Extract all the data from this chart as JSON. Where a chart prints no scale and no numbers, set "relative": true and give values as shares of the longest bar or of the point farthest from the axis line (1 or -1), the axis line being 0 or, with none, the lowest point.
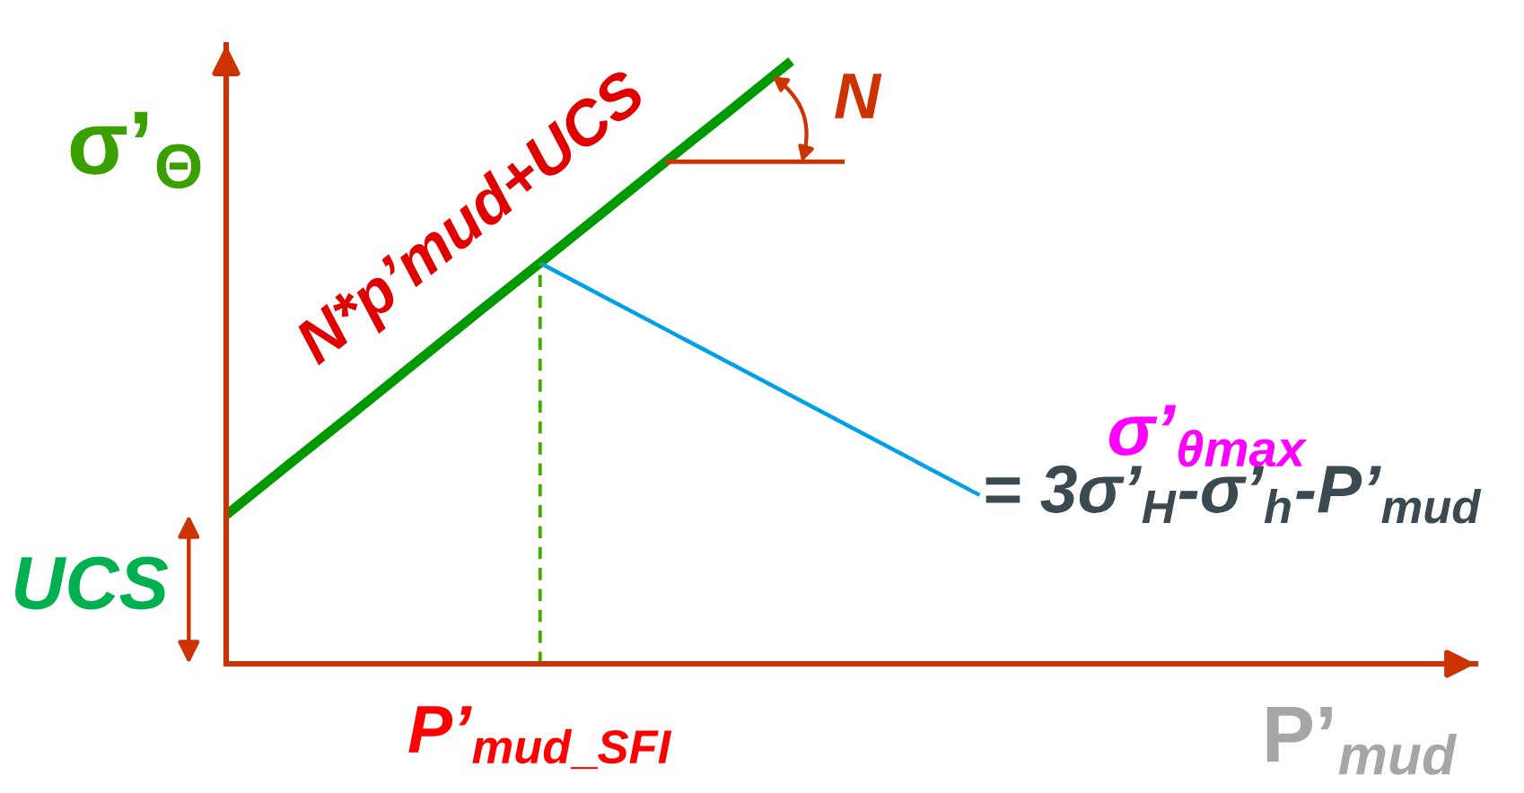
{
  "chart_data": {
    "type": "line",
    "relative": true,
    "ylabel": "σ’$_{Θ}$",
    "xlabel": "P’$_{mud}$",
    "categories": [
      null,
      null,
      null,
      null,
      null,
      null,
      null,
      null,
      null,
      null,
      null,
      null,
      null,
      null,
      null,
      null,
      null,
      null,
      null,
      null
    ],
    "series": [
      {
        "name": "N*p’mud+UCS",
        "color": "#009900",
        "values": [
          0.247,
          0.331,
          0.414,
          0.498,
          0.582,
          0.665,
          0.749,
          0.833,
          0.916,
          1.0,
          null,
          null,
          null,
          null,
          null,
          null,
          null,
          null,
          null,
          null
        ]
      },
      {
        "name": "σ’$_{θmax}$",
        "color": "#00a0e8",
        "values": [
          null,
          null,
          null,
          null,
          null,
          0.665,
          0.61,
          0.555,
          0.5,
          0.445,
          0.39,
          0.335,
          0.28,
          null,
          null,
          null,
          null,
          null,
          null,
          null
        ]
      }
    ],
    "annotations": [
      "= 3σ’$_{H}$-σ’$_{h}$-P’$_{mud}$",
      "UCS",
      "N",
      "P’$_{mud_SFI}$"
    ]
  }
}
